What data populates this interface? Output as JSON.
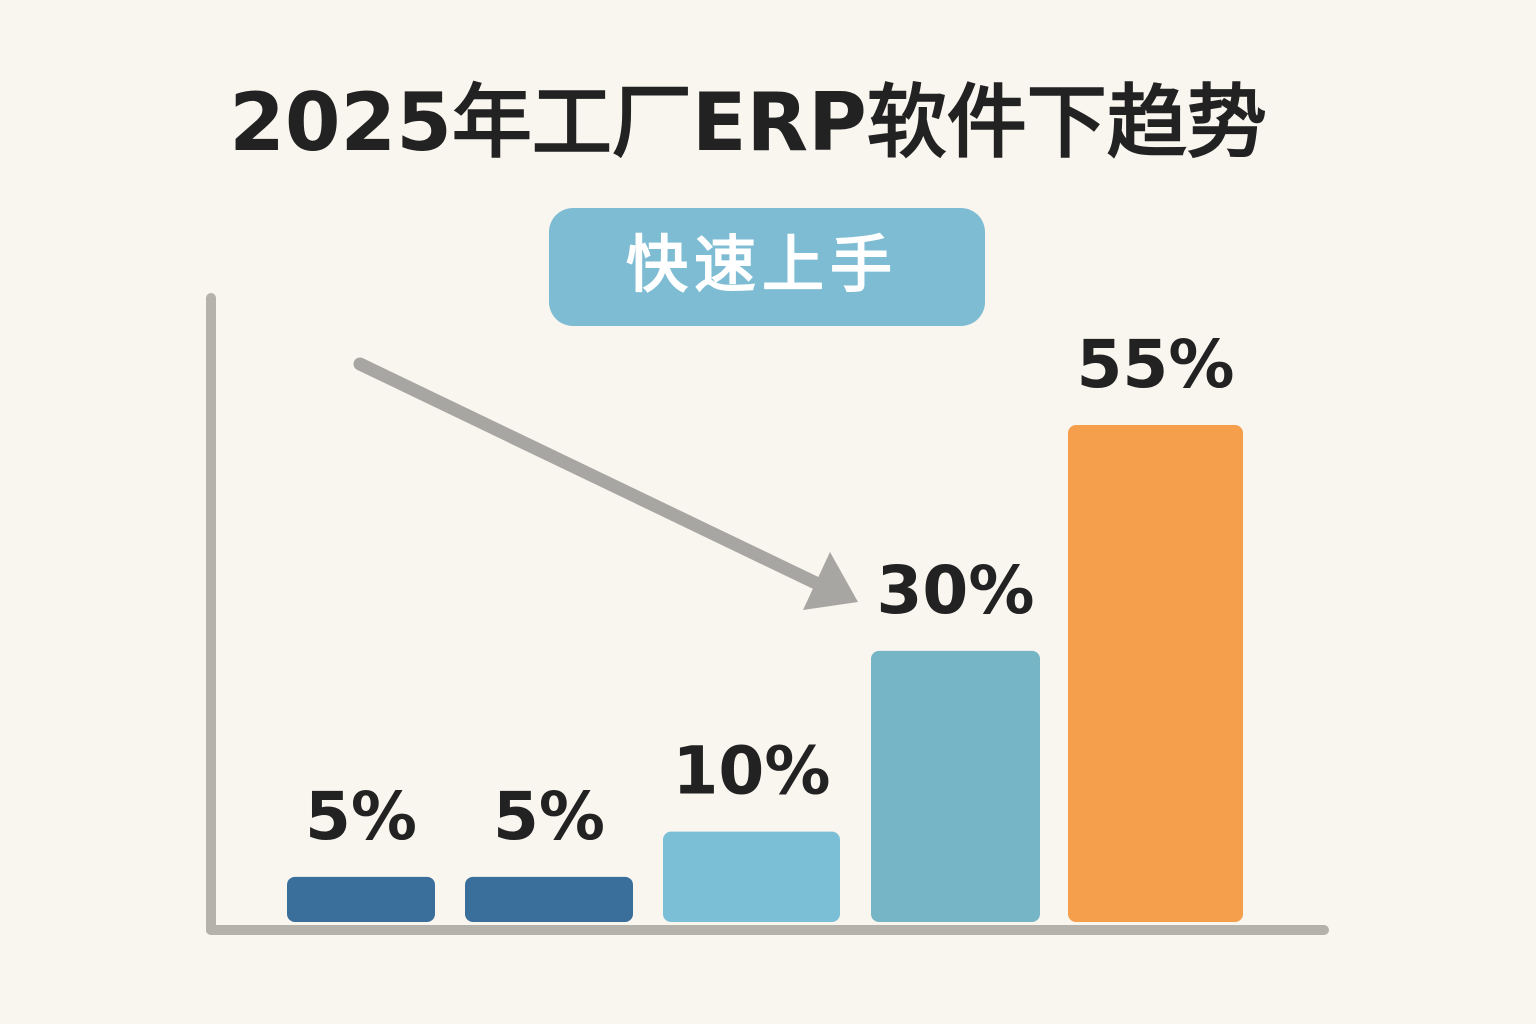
{
  "chart_data": {
    "type": "bar",
    "title": "2025年工厂ERP软件下趋势",
    "annotation": "快速上手",
    "categories": [
      null,
      null,
      null,
      null,
      null
    ],
    "values": [
      5,
      5,
      10,
      30,
      55
    ],
    "value_labels": [
      "5%",
      "5%",
      "10%",
      "30%",
      "55%"
    ],
    "colors": [
      "#3a6f9c",
      "#3a6f9c",
      "#7bbfd6",
      "#76b5c5",
      "#f59e4c"
    ]
  }
}
